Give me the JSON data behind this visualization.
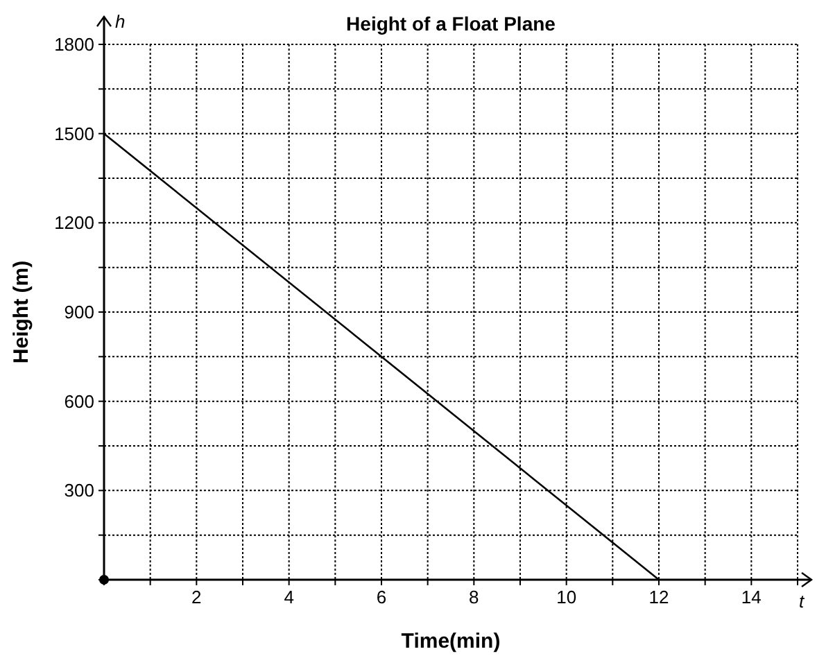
{
  "chart_data": {
    "type": "line",
    "title": "Height of a Float Plane",
    "xlabel": "Time(min)",
    "ylabel": "Height (m)",
    "annotations": [
      "h",
      "t"
    ],
    "x": [
      0,
      12
    ],
    "series": [
      {
        "color": "#000000",
        "values": [
          1500,
          0
        ]
      }
    ],
    "xlim": [
      0,
      15
    ],
    "ylim": [
      0,
      1800
    ],
    "xticks": [
      {
        "value": 0,
        "label": null
      },
      {
        "value": 1,
        "label": null
      },
      2,
      {
        "value": 3,
        "label": null
      },
      4,
      {
        "value": 5,
        "label": null
      },
      6,
      {
        "value": 7,
        "label": null
      },
      8,
      {
        "value": 9,
        "label": null
      },
      10,
      {
        "value": 11,
        "label": null
      },
      12,
      {
        "value": 13,
        "label": null
      },
      14,
      {
        "value": 15,
        "label": null
      }
    ],
    "yticks": [
      {
        "value": 0,
        "label": null
      },
      {
        "value": 150,
        "label": null
      },
      300,
      {
        "value": 450,
        "label": null
      },
      600,
      {
        "value": 750,
        "label": null
      },
      900,
      {
        "value": 1050,
        "label": null
      },
      1200,
      {
        "value": 1350,
        "label": null
      },
      1500,
      {
        "value": 1650,
        "label": null
      },
      1800
    ],
    "grid": true,
    "marker": "none",
    "line_style": "solid"
  }
}
